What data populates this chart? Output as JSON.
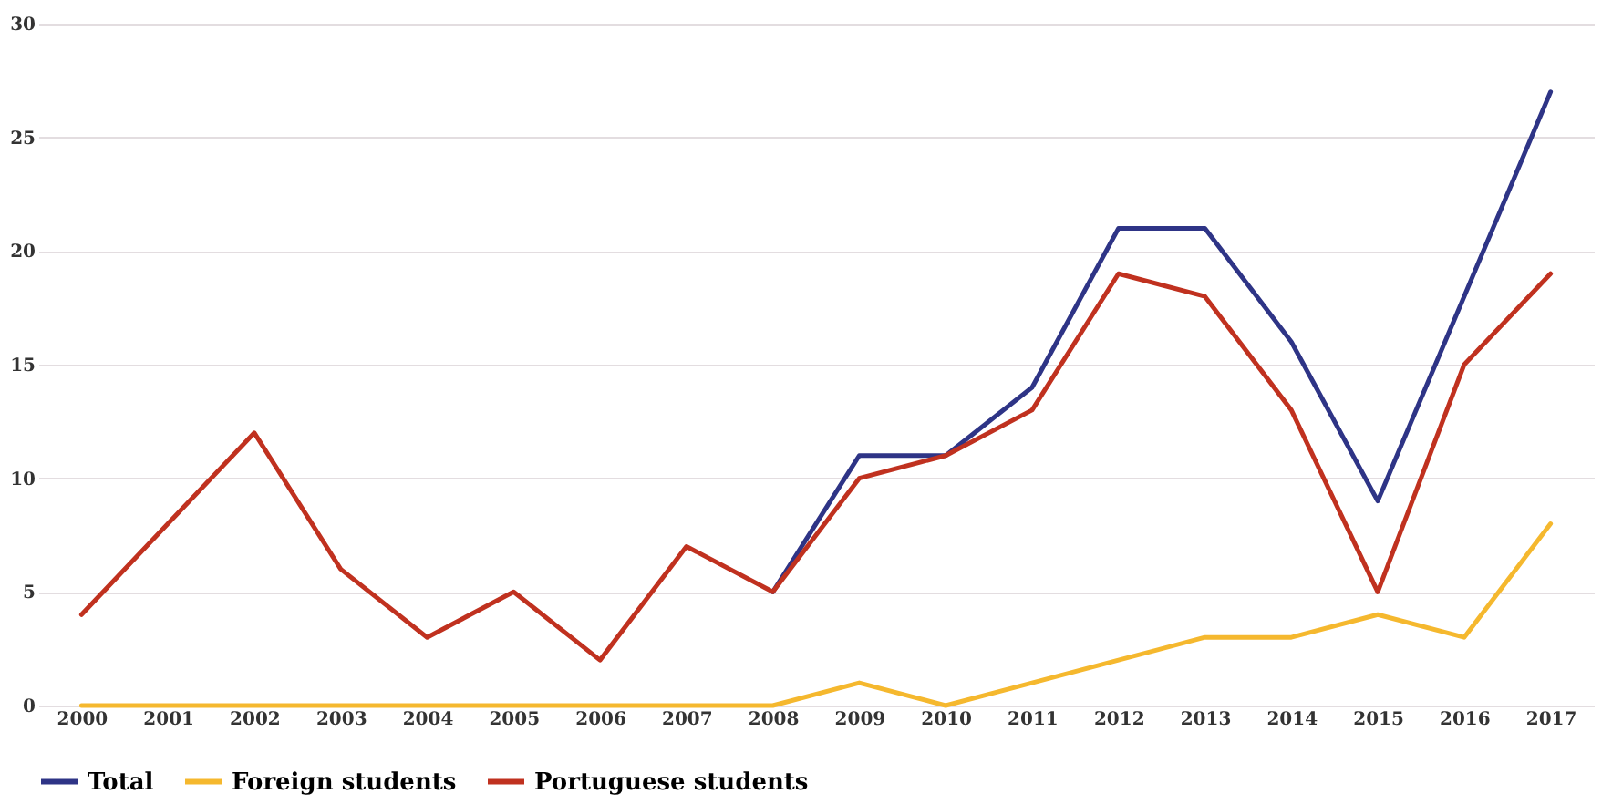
{
  "chart_data": {
    "type": "line",
    "categories": [
      "2000",
      "2001",
      "2002",
      "2003",
      "2004",
      "2005",
      "2006",
      "2007",
      "2008",
      "2009",
      "2010",
      "2011",
      "2012",
      "2013",
      "2014",
      "2015",
      "2016",
      "2017"
    ],
    "series": [
      {
        "name": "Total",
        "color": "#2e3486",
        "values": [
          null,
          null,
          null,
          null,
          null,
          null,
          null,
          null,
          5,
          11,
          11,
          14,
          21,
          21,
          16,
          9,
          18,
          27
        ]
      },
      {
        "name": "Foreign students",
        "color": "#f5b82e",
        "values": [
          0,
          0,
          0,
          0,
          0,
          0,
          0,
          0,
          0,
          1,
          0,
          1,
          2,
          3,
          3,
          4,
          3,
          8
        ]
      },
      {
        "name": "Portuguese students",
        "color": "#c0311f",
        "values": [
          4,
          8,
          12,
          6,
          3,
          5,
          2,
          7,
          5,
          10,
          11,
          13,
          19,
          18,
          13,
          5,
          15,
          19
        ]
      }
    ],
    "ylim": [
      0,
      30
    ],
    "yticks": [
      0,
      5,
      10,
      15,
      20,
      25,
      30
    ],
    "grid": "y",
    "legend": "bottom",
    "marker": "none",
    "line_style": "solid"
  }
}
